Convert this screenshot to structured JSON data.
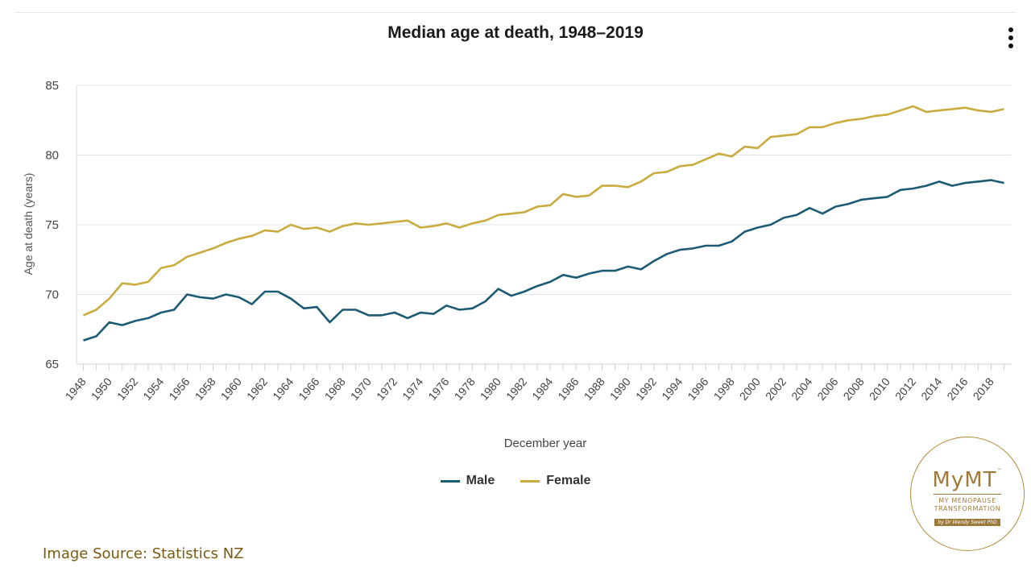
{
  "chart_data": {
    "type": "line",
    "title": "Median age at death, 1948–2019",
    "xlabel": "December year",
    "ylabel": "Age at death (years)",
    "ylim": [
      65,
      85
    ],
    "yticks": [
      65,
      70,
      75,
      80,
      85
    ],
    "xticks": [
      "1948",
      "1950",
      "1952",
      "1954",
      "1956",
      "1958",
      "1960",
      "1962",
      "1964",
      "1966",
      "1968",
      "1970",
      "1972",
      "1974",
      "1976",
      "1978",
      "1980",
      "1982",
      "1984",
      "1986",
      "1988",
      "1990",
      "1992",
      "1994",
      "1996",
      "1998",
      "2000",
      "2002",
      "2004",
      "2006",
      "2008",
      "2010",
      "2012",
      "2014",
      "2016",
      "2018"
    ],
    "x": [
      1948,
      1949,
      1950,
      1951,
      1952,
      1953,
      1954,
      1955,
      1956,
      1957,
      1958,
      1959,
      1960,
      1961,
      1962,
      1963,
      1964,
      1965,
      1966,
      1967,
      1968,
      1969,
      1970,
      1971,
      1972,
      1973,
      1974,
      1975,
      1976,
      1977,
      1978,
      1979,
      1980,
      1981,
      1982,
      1983,
      1984,
      1985,
      1986,
      1987,
      1988,
      1989,
      1990,
      1991,
      1992,
      1993,
      1994,
      1995,
      1996,
      1997,
      1998,
      1999,
      2000,
      2001,
      2002,
      2003,
      2004,
      2005,
      2006,
      2007,
      2008,
      2009,
      2010,
      2011,
      2012,
      2013,
      2014,
      2015,
      2016,
      2017,
      2018,
      2019
    ],
    "grid": true,
    "legend_position": "bottom",
    "series": [
      {
        "name": "Male",
        "color": "#1d5b74",
        "values": [
          66.7,
          67.0,
          68.0,
          67.8,
          68.1,
          68.3,
          68.7,
          68.9,
          70.0,
          69.8,
          69.7,
          70.0,
          69.8,
          69.3,
          70.2,
          70.2,
          69.7,
          69.0,
          69.1,
          68.0,
          68.9,
          68.9,
          68.5,
          68.5,
          68.7,
          68.3,
          68.7,
          68.6,
          69.2,
          68.9,
          69.0,
          69.5,
          70.4,
          69.9,
          70.2,
          70.6,
          70.9,
          71.4,
          71.2,
          71.5,
          71.7,
          71.7,
          72.0,
          71.8,
          72.4,
          72.9,
          73.2,
          73.3,
          73.5,
          73.5,
          73.8,
          74.5,
          74.8,
          75.0,
          75.5,
          75.7,
          76.2,
          75.8,
          76.3,
          76.5,
          76.8,
          76.9,
          77.0,
          77.5,
          77.6,
          77.8,
          78.1,
          77.8,
          78.0,
          78.1,
          78.2,
          78.0
        ]
      },
      {
        "name": "Female",
        "color": "#c9ab3f",
        "values": [
          68.5,
          68.9,
          69.7,
          70.8,
          70.7,
          70.9,
          71.9,
          72.1,
          72.7,
          73.0,
          73.3,
          73.7,
          74.0,
          74.2,
          74.6,
          74.5,
          75.0,
          74.7,
          74.8,
          74.5,
          74.9,
          75.1,
          75.0,
          75.1,
          75.2,
          75.3,
          74.8,
          74.9,
          75.1,
          74.8,
          75.1,
          75.3,
          75.7,
          75.8,
          75.9,
          76.3,
          76.4,
          77.2,
          77.0,
          77.1,
          77.8,
          77.8,
          77.7,
          78.1,
          78.7,
          78.8,
          79.2,
          79.3,
          79.7,
          80.1,
          79.9,
          80.6,
          80.5,
          81.3,
          81.4,
          81.5,
          82.0,
          82.0,
          82.3,
          82.5,
          82.6,
          82.8,
          82.9,
          83.2,
          83.5,
          83.1,
          83.2,
          83.3,
          83.4,
          83.2,
          83.1,
          83.3
        ]
      }
    ]
  },
  "page": {
    "source": "Image Source: Statistics NZ",
    "logo": {
      "wordmark": "MyMT",
      "trademark": "™",
      "line1": "MY MENOPAUSE",
      "line2": "TRANSFORMATION",
      "tagline": "by Dr Wendy Sweet PhD"
    }
  }
}
